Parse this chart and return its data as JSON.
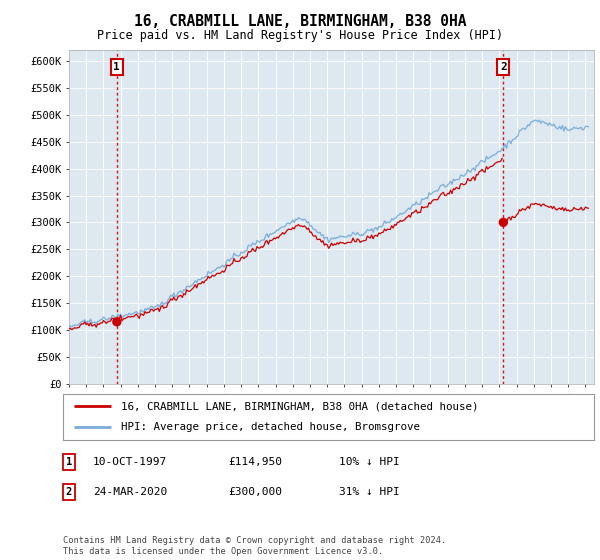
{
  "title": "16, CRABMILL LANE, BIRMINGHAM, B38 0HA",
  "subtitle": "Price paid vs. HM Land Registry's House Price Index (HPI)",
  "ylabel_ticks": [
    "£0",
    "£50K",
    "£100K",
    "£150K",
    "£200K",
    "£250K",
    "£300K",
    "£350K",
    "£400K",
    "£450K",
    "£500K",
    "£550K",
    "£600K"
  ],
  "ytick_vals": [
    0,
    50000,
    100000,
    150000,
    200000,
    250000,
    300000,
    350000,
    400000,
    450000,
    500000,
    550000,
    600000
  ],
  "ylim": [
    0,
    620000
  ],
  "xlim_start": 1995.0,
  "xlim_end": 2025.5,
  "purchase1_x": 1997.78,
  "purchase1_y": 114950,
  "purchase2_x": 2020.23,
  "purchase2_y": 300000,
  "line_color_red": "#cc0000",
  "line_color_blue": "#7aadda",
  "marker_color": "#cc0000",
  "dashed_color": "#cc0000",
  "plot_bg_color": "#dde8f0",
  "legend_entry1": "16, CRABMILL LANE, BIRMINGHAM, B38 0HA (detached house)",
  "legend_entry2": "HPI: Average price, detached house, Bromsgrove",
  "annotation1_date": "10-OCT-1997",
  "annotation1_price": "£114,950",
  "annotation1_hpi": "10% ↓ HPI",
  "annotation2_date": "24-MAR-2020",
  "annotation2_price": "£300,000",
  "annotation2_hpi": "31% ↓ HPI",
  "footer": "Contains HM Land Registry data © Crown copyright and database right 2024.\nThis data is licensed under the Open Government Licence v3.0.",
  "background_color": "#ffffff",
  "grid_color": "#ffffff"
}
